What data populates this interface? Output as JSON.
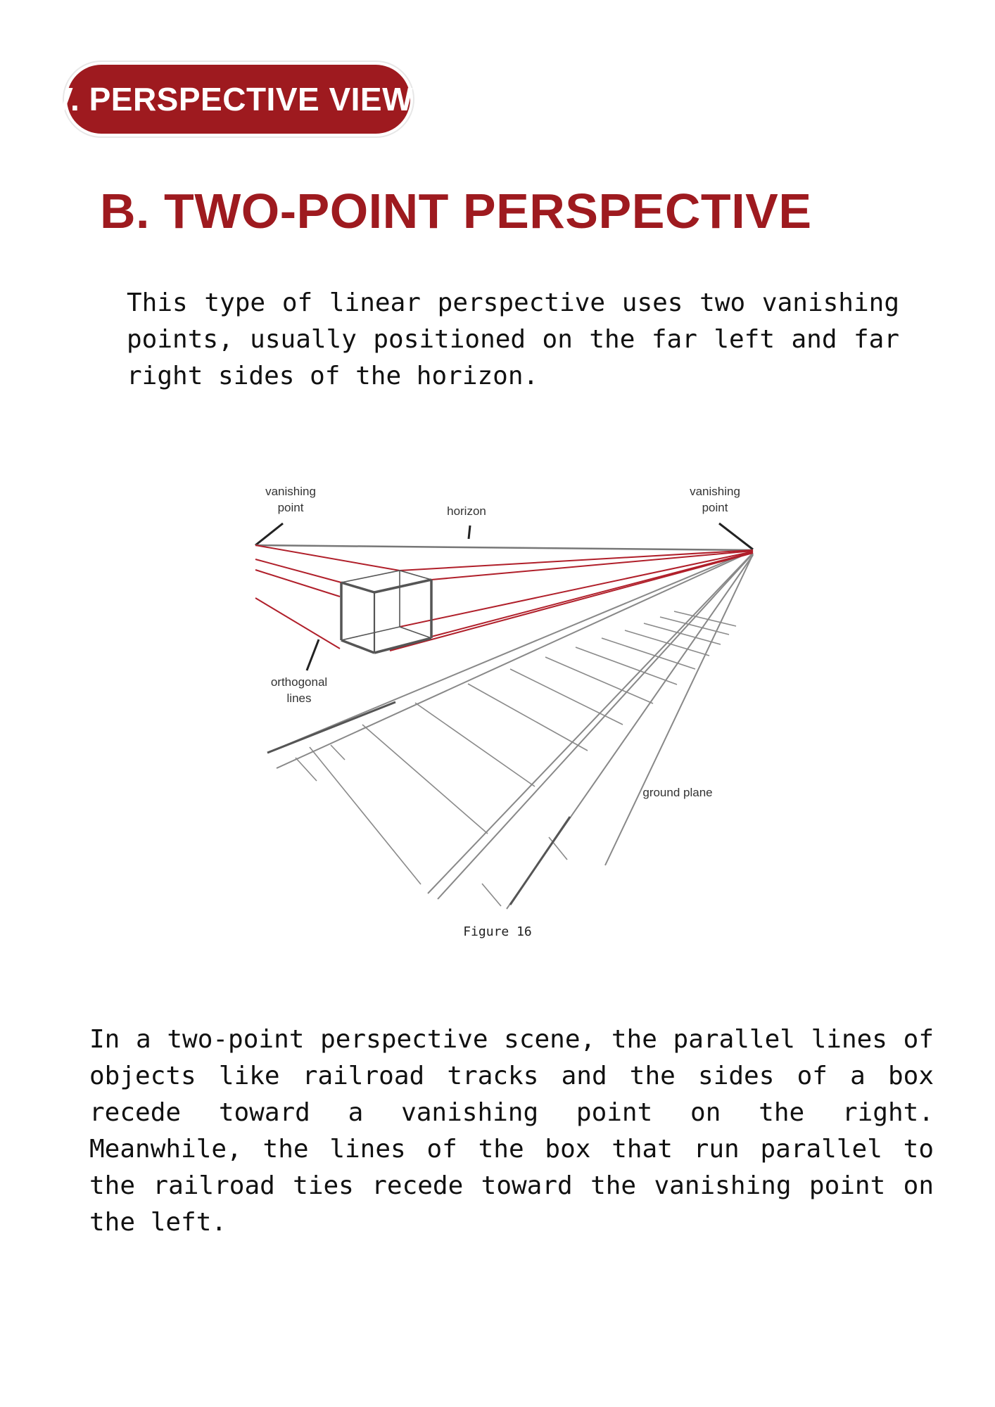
{
  "section_label": "IV. PERSPECTIVE VIEWS",
  "heading": "B. TWO-POINT PERSPECTIVE",
  "intro_paragraph": "This type of linear perspective uses two vanishing points, usually positioned on the far left and far right sides of the horizon.",
  "figure": {
    "labels": {
      "vp_left_line1": "vanishing",
      "vp_left_line2": "point",
      "horizon": "horizon",
      "vp_right_line1": "vanishing",
      "vp_right_line2": "point",
      "orthogonal_line1": "orthogonal",
      "orthogonal_line2": "lines",
      "ground_plane": "ground plane"
    },
    "caption": "Figure 16",
    "colors": {
      "orthogonal_lines": "#b01f2a",
      "pencil": "#777777",
      "box": "#555555"
    }
  },
  "body_paragraph": "In a two-point perspective scene, the parallel lines of objects like railroad tracks and the sides of a box recede toward a vanishing point on the right. Meanwhile, the lines of the box that run parallel to the railroad ties recede toward the vanishing point on the left.",
  "colors": {
    "accent": "#9e1a1f",
    "text": "#111111",
    "background": "#ffffff"
  }
}
